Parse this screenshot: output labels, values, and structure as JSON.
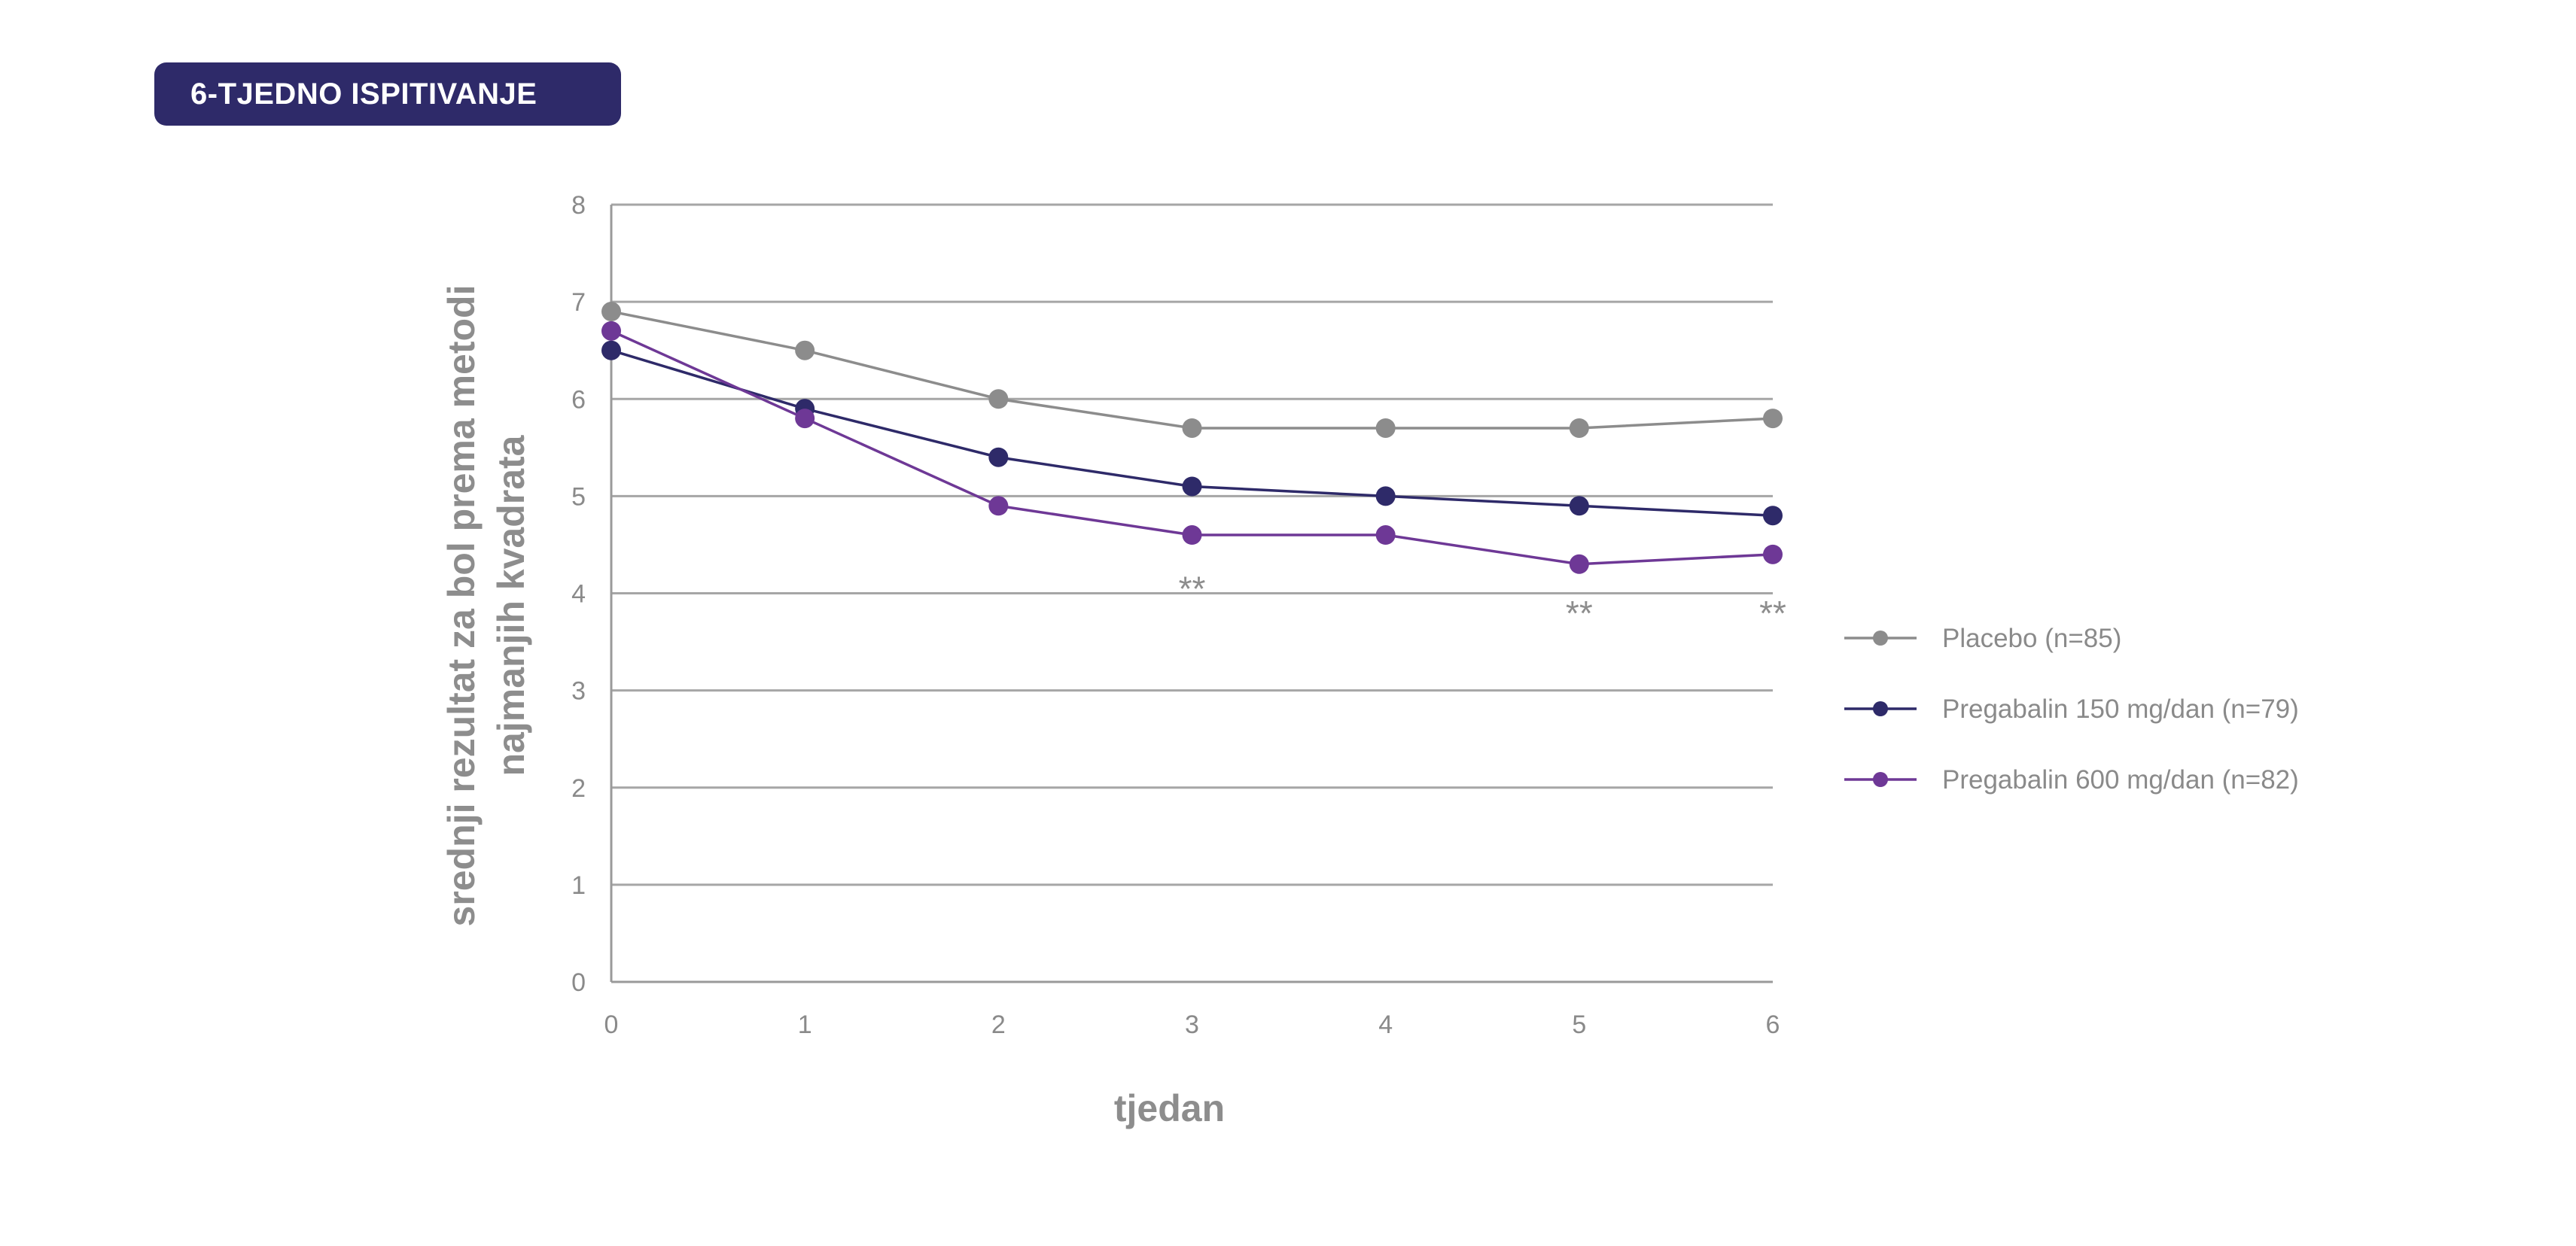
{
  "badge": {
    "label": "6-TJEDNO ISPITIVANJE"
  },
  "chart_data": {
    "type": "line",
    "xlabel": "tjedan",
    "ylabel_lines": [
      "srednji rezultat za bol prema metodi",
      "najmanjih kvadrata"
    ],
    "x": [
      0,
      1,
      2,
      3,
      4,
      5,
      6
    ],
    "xticks": [
      "0",
      "1",
      "2",
      "3",
      "4",
      "5",
      "6"
    ],
    "yticks": [
      "0",
      "1",
      "2",
      "3",
      "4",
      "5",
      "6",
      "7",
      "8"
    ],
    "ylim": [
      0,
      8
    ],
    "xlim": [
      0,
      6
    ],
    "grid": true,
    "legend_position": "right",
    "series": [
      {
        "name": "Placebo (n=85)",
        "color": "#8c8c8c",
        "values": [
          6.9,
          6.5,
          6.0,
          5.7,
          5.7,
          5.7,
          5.8
        ]
      },
      {
        "name": "Pregabalin 150 mg/dan (n=79)",
        "color": "#2e2a69",
        "values": [
          6.5,
          5.9,
          5.4,
          5.1,
          5.0,
          4.9,
          4.8
        ]
      },
      {
        "name": "Pregabalin 600 mg/dan (n=82)",
        "color": "#6e3896",
        "values": [
          6.7,
          5.8,
          4.9,
          4.6,
          4.6,
          4.3,
          4.4
        ]
      }
    ],
    "annotations": [
      {
        "x": 3,
        "y": 4.0,
        "text": "**"
      },
      {
        "x": 5,
        "y": 3.75,
        "text": "**"
      },
      {
        "x": 6,
        "y": 3.75,
        "text": "**"
      }
    ]
  }
}
